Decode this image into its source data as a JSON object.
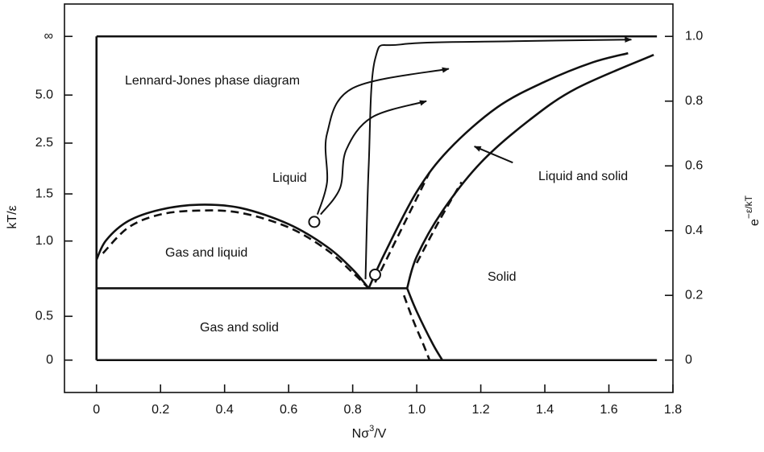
{
  "chart_data": {
    "type": "line",
    "title": "Lennard-Jones phase diagram",
    "annotations": [
      "Liquid",
      "Gas and liquid",
      "Gas and solid",
      "Solid",
      "Liquid and solid"
    ],
    "xlabel": [
      "Nσ",
      "3",
      "/V"
    ],
    "ylabel": "kT/ε",
    "y2label": [
      "e",
      "−ε/kT"
    ],
    "xlim": [
      -0.1,
      1.8
    ],
    "xticks": [
      0,
      0.2,
      0.4,
      0.6,
      0.8,
      {
        "value": 1,
        "label": "1.0"
      },
      1.2,
      1.4,
      1.6,
      1.8
    ],
    "yscale": "exp(-1/y)",
    "yticks": [
      {
        "value": "Infinity",
        "label": "∞"
      },
      {
        "value": 5,
        "label": "5.0"
      },
      2.5,
      1.5,
      {
        "value": 1,
        "label": "1.0"
      },
      0.5,
      0
    ],
    "y2lim": [
      -0.1,
      1.1
    ],
    "y2ticks": [
      0,
      0.2,
      0.4,
      0.6,
      0.8,
      {
        "value": 1,
        "label": "1.0"
      }
    ],
    "color": "#111111",
    "series": [
      {
        "axis": "y2",
        "x": [
          0,
          0
        ],
        "values": [
          0,
          1
        ]
      },
      {
        "axis": "y2",
        "x": [
          0,
          1.75
        ],
        "values": [
          1,
          1
        ]
      },
      {
        "axis": "y2",
        "x": [
          0,
          1.75
        ],
        "values": [
          0,
          0
        ]
      },
      {
        "axis": "y2",
        "x": [
          0,
          0.97
        ],
        "values": [
          0.222,
          0.222
        ]
      },
      {
        "axis": "y2",
        "x": [
          0,
          0.03,
          0.1,
          0.2,
          0.32,
          0.45,
          0.6,
          0.72,
          0.8,
          0.85
        ],
        "values": [
          0.31,
          0.37,
          0.43,
          0.465,
          0.48,
          0.47,
          0.42,
          0.35,
          0.28,
          0.222
        ]
      },
      {
        "axis": "y2",
        "dashed": true,
        "x": [
          0.02,
          0.1,
          0.2,
          0.32,
          0.45,
          0.6,
          0.72,
          0.8,
          0.85
        ],
        "values": [
          0.33,
          0.41,
          0.45,
          0.462,
          0.455,
          0.41,
          0.34,
          0.27,
          0.222
        ]
      },
      {
        "axis": "y2",
        "x": [
          0.85,
          0.9,
          1.0,
          1.1,
          1.25,
          1.4,
          1.55,
          1.66
        ],
        "values": [
          0.222,
          0.33,
          0.52,
          0.65,
          0.78,
          0.86,
          0.92,
          0.948
        ]
      },
      {
        "axis": "y2",
        "dashed": true,
        "x": [
          0.87,
          0.95,
          1.04
        ],
        "values": [
          0.24,
          0.4,
          0.58
        ]
      },
      {
        "axis": "y2",
        "x": [
          0.97,
          1.0,
          1.08,
          1.2,
          1.35,
          1.5,
          1.74
        ],
        "values": [
          0.222,
          0.32,
          0.46,
          0.61,
          0.74,
          0.84,
          0.943
        ]
      },
      {
        "axis": "y2",
        "dashed": true,
        "x": [
          1.0,
          1.07,
          1.14
        ],
        "values": [
          0.3,
          0.43,
          0.55
        ]
      },
      {
        "axis": "y2",
        "x": [
          0.97,
          1.0,
          1.05,
          1.08
        ],
        "values": [
          0.222,
          0.15,
          0.05,
          0
        ]
      },
      {
        "axis": "y2",
        "dashed": true,
        "x": [
          0.96,
          0.99,
          1.02,
          1.04
        ],
        "values": [
          0.2,
          0.12,
          0.05,
          0
        ]
      },
      {
        "axis": "y2",
        "arrow": true,
        "x": [
          0.84,
          0.85,
          0.87,
          0.95,
          1.3,
          1.67
        ],
        "values": [
          0.25,
          0.6,
          0.93,
          0.975,
          0.985,
          0.99
        ]
      },
      {
        "axis": "y2",
        "arrow": true,
        "x": [
          0.69,
          0.72,
          0.72,
          0.8,
          1.1
        ],
        "values": [
          0.45,
          0.55,
          0.7,
          0.84,
          0.9
        ]
      },
      {
        "axis": "y2",
        "arrow": true,
        "x": [
          0.7,
          0.76,
          0.78,
          0.86,
          1.03
        ],
        "values": [
          0.45,
          0.53,
          0.65,
          0.75,
          0.8
        ]
      },
      {
        "axis": "y2",
        "arrow": true,
        "x": [
          1.3,
          1.18
        ],
        "values": [
          0.61,
          0.66
        ]
      }
    ],
    "points": [
      {
        "x": 0.68,
        "value": 0.427
      },
      {
        "x": 0.87,
        "value": 0.264
      }
    ]
  }
}
